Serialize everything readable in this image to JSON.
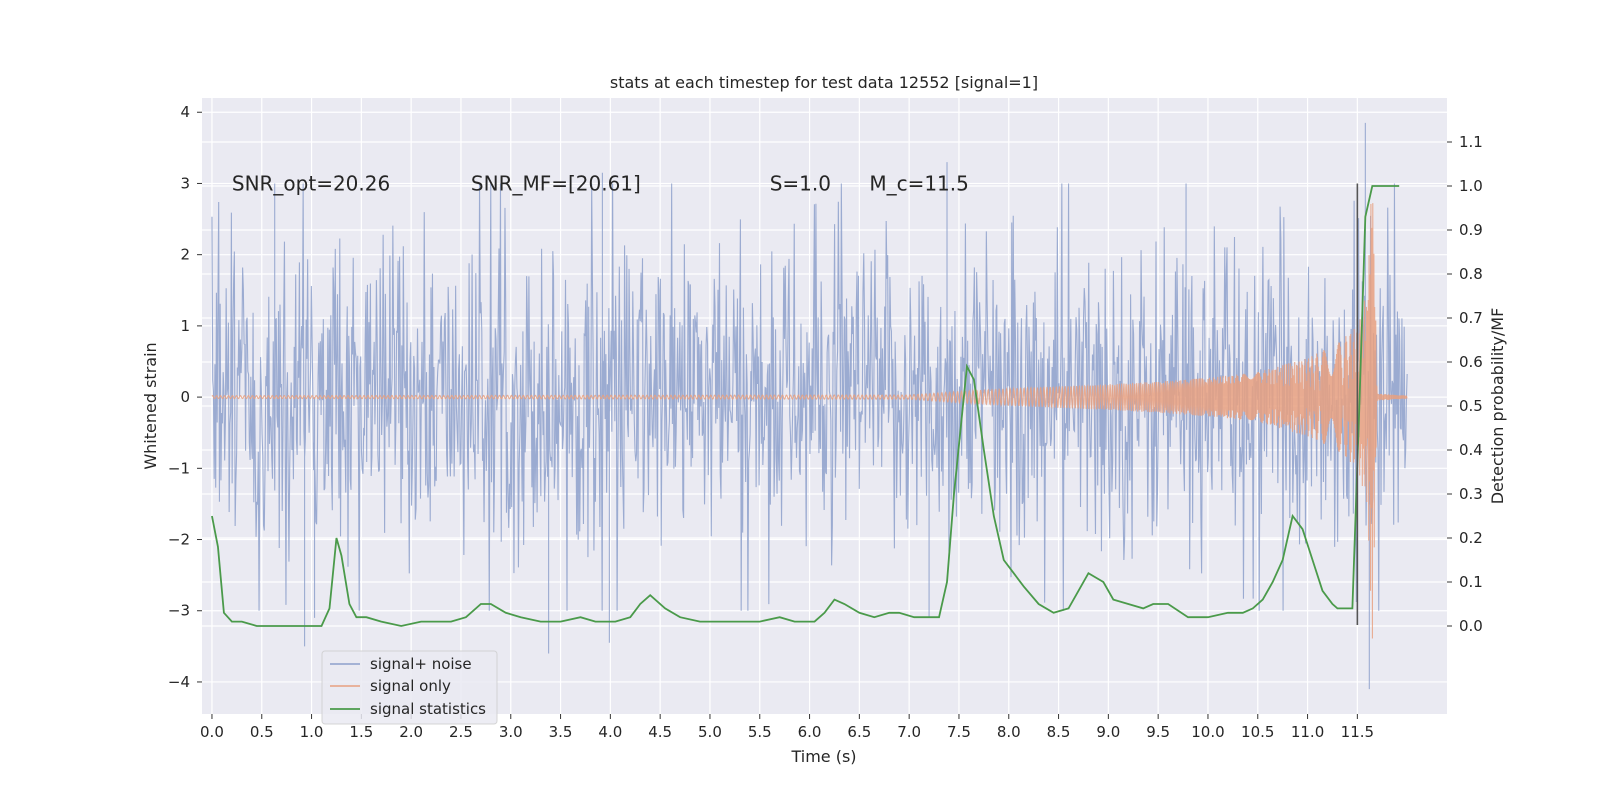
{
  "chart_data": {
    "type": "line",
    "title": "stats at each timestep for test data 12552 [signal=1]",
    "xlabel": "Time (s)",
    "ylabel": "Whitened strain",
    "ylabel_right": "Detection probability/MF",
    "xlim": [
      -0.1,
      12.4
    ],
    "ylim": [
      -4.45,
      4.2
    ],
    "ylim_right": [
      -0.2,
      1.2
    ],
    "x_ticks": [
      "0.0",
      "0.5",
      "1.0",
      "1.5",
      "2.0",
      "2.5",
      "3.0",
      "3.5",
      "4.0",
      "4.5",
      "5.0",
      "5.5",
      "6.0",
      "6.5",
      "7.0",
      "7.5",
      "8.0",
      "8.5",
      "9.0",
      "9.5",
      "10.0",
      "10.5",
      "11.0",
      "11.5"
    ],
    "y_ticks": [
      "−4",
      "−3",
      "−2",
      "−1",
      "0",
      "1",
      "2",
      "3",
      "4"
    ],
    "y_ticks_right": [
      "0.0",
      "0.1",
      "0.2",
      "0.3",
      "0.4",
      "0.5",
      "0.6",
      "0.7",
      "0.8",
      "0.9",
      "1.0",
      "1.1"
    ],
    "annotations": [
      {
        "text": "SNR_opt=20.26",
        "x": 0.2,
        "y": 3.0
      },
      {
        "text": "SNR_MF=[20.61]",
        "x": 2.6,
        "y": 3.0
      },
      {
        "text": "S=1.0",
        "x": 5.6,
        "y": 3.0
      },
      {
        "text": "M_c=11.5",
        "x": 6.6,
        "y": 3.0
      }
    ],
    "vline": {
      "x": 11.5,
      "y_range": [
        -3.2,
        3.0
      ]
    },
    "grid": true,
    "legend": {
      "position": "lower-left",
      "entries": [
        "signal+ noise",
        "signal only",
        "signal statistics"
      ]
    },
    "series": [
      {
        "name": "signal+ noise",
        "axis": "left",
        "color": "#8da0cb",
        "kind": "dense-noise",
        "x_range": [
          0.0,
          12.0
        ],
        "core_amplitude": 1.2,
        "peaks": [
          {
            "x": 0.93,
            "y": -3.5
          },
          {
            "x": 1.03,
            "y": -3.1
          },
          {
            "x": 0.63,
            "y": 3.0
          },
          {
            "x": 3.38,
            "y": -3.6
          },
          {
            "x": 3.92,
            "y": 3.15
          },
          {
            "x": 3.99,
            "y": -3.45
          },
          {
            "x": 7.38,
            "y": 3.3
          },
          {
            "x": 7.2,
            "y": -3.1
          },
          {
            "x": 9.78,
            "y": 3.0
          },
          {
            "x": 11.58,
            "y": 3.85
          },
          {
            "x": 11.62,
            "y": -4.1
          }
        ],
        "upper_envelope_typical": 2.2,
        "lower_envelope_typical": -2.3
      },
      {
        "name": "signal only",
        "axis": "left",
        "color": "#e8a080",
        "kind": "chirp",
        "x": [
          0.0,
          7.0,
          7.5,
          8.0,
          8.5,
          9.0,
          9.5,
          10.0,
          10.5,
          11.0,
          11.3,
          11.5,
          11.6,
          11.65,
          11.7,
          12.0
        ],
        "amplitude": [
          0.02,
          0.03,
          0.08,
          0.12,
          0.15,
          0.18,
          0.22,
          0.27,
          0.35,
          0.55,
          0.75,
          1.0,
          1.5,
          3.5,
          0.05,
          0.02
        ]
      },
      {
        "name": "signal statistics",
        "axis": "right",
        "color": "#5a9a5a",
        "x": [
          0.0,
          0.06,
          0.12,
          0.2,
          0.3,
          0.45,
          0.6,
          0.75,
          0.9,
          1.0,
          1.1,
          1.18,
          1.25,
          1.3,
          1.38,
          1.45,
          1.55,
          1.7,
          1.9,
          2.1,
          2.25,
          2.4,
          2.55,
          2.7,
          2.8,
          2.95,
          3.1,
          3.3,
          3.5,
          3.7,
          3.85,
          4.05,
          4.2,
          4.3,
          4.4,
          4.55,
          4.7,
          4.9,
          5.1,
          5.3,
          5.5,
          5.7,
          5.85,
          6.05,
          6.15,
          6.25,
          6.35,
          6.5,
          6.65,
          6.8,
          6.9,
          7.05,
          7.2,
          7.3,
          7.38,
          7.45,
          7.58,
          7.65,
          7.75,
          7.85,
          7.95,
          8.05,
          8.15,
          8.3,
          8.45,
          8.6,
          8.7,
          8.8,
          8.95,
          9.05,
          9.2,
          9.35,
          9.45,
          9.6,
          9.8,
          10.0,
          10.2,
          10.35,
          10.45,
          10.55,
          10.65,
          10.75,
          10.85,
          10.95,
          11.05,
          11.15,
          11.25,
          11.3,
          11.38,
          11.45,
          11.52,
          11.58,
          11.65,
          11.75,
          11.85,
          11.92
        ],
        "y": [
          0.25,
          0.18,
          0.03,
          0.01,
          0.01,
          0.0,
          0.0,
          0.0,
          0.0,
          0.0,
          0.0,
          0.04,
          0.2,
          0.16,
          0.05,
          0.02,
          0.02,
          0.01,
          0.0,
          0.01,
          0.01,
          0.01,
          0.02,
          0.05,
          0.05,
          0.03,
          0.02,
          0.01,
          0.01,
          0.02,
          0.01,
          0.01,
          0.02,
          0.05,
          0.07,
          0.04,
          0.02,
          0.01,
          0.01,
          0.01,
          0.01,
          0.02,
          0.01,
          0.01,
          0.03,
          0.06,
          0.05,
          0.03,
          0.02,
          0.03,
          0.03,
          0.02,
          0.02,
          0.02,
          0.1,
          0.3,
          0.59,
          0.56,
          0.4,
          0.25,
          0.15,
          0.12,
          0.09,
          0.05,
          0.03,
          0.04,
          0.08,
          0.12,
          0.1,
          0.06,
          0.05,
          0.04,
          0.05,
          0.05,
          0.02,
          0.02,
          0.03,
          0.03,
          0.04,
          0.06,
          0.1,
          0.15,
          0.25,
          0.22,
          0.15,
          0.08,
          0.05,
          0.04,
          0.04,
          0.04,
          0.5,
          0.93,
          1.0,
          1.0,
          1.0,
          1.0
        ]
      }
    ]
  }
}
